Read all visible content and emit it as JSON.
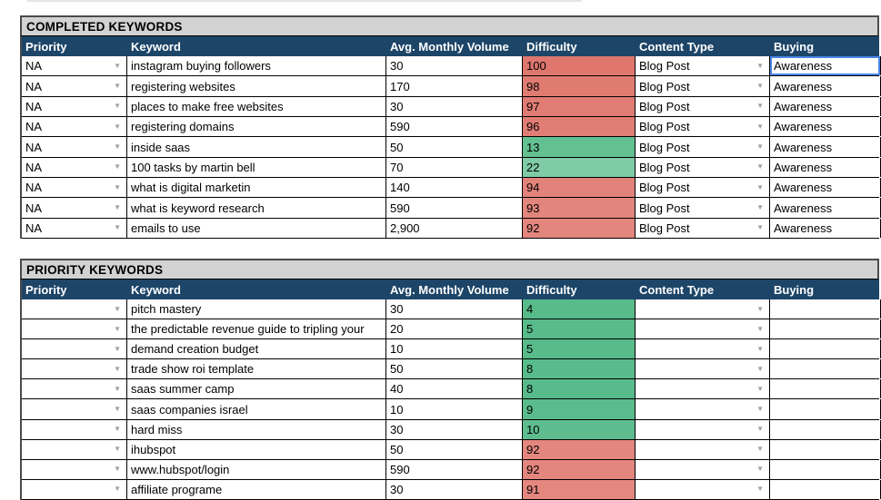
{
  "colors": {
    "header_bg": "#1d4568",
    "header_text": "#ffffff",
    "section_band_bg": "#d2d2d2",
    "difficulty_red": "#e3867e",
    "difficulty_green": "#57bb8a",
    "selection_border": "#4a86e8",
    "grid_border": "#000000"
  },
  "columns": [
    {
      "key": "priority",
      "label": "Priority"
    },
    {
      "key": "keyword",
      "label": "Keyword"
    },
    {
      "key": "volume",
      "label": "Avg. Monthly Volume"
    },
    {
      "key": "difficulty",
      "label": "Difficulty"
    },
    {
      "key": "content_type",
      "label": "Content Type"
    },
    {
      "key": "buying",
      "label": "Buying"
    }
  ],
  "tables": [
    {
      "title": "COMPLETED KEYWORDS",
      "rows": [
        {
          "priority": "NA",
          "keyword": "instagram buying followers",
          "volume": "30",
          "difficulty": "100",
          "difficulty_color": "#df776e",
          "content_type": "Blog Post",
          "buying": "Awareness",
          "buying_selected": true
        },
        {
          "priority": "NA",
          "keyword": "registering websites",
          "volume": "170",
          "difficulty": "98",
          "difficulty_color": "#e07b72",
          "content_type": "Blog Post",
          "buying": "Awareness",
          "buying_selected": false
        },
        {
          "priority": "NA",
          "keyword": "places to make free websites",
          "volume": "30",
          "difficulty": "97",
          "difficulty_color": "#e07c73",
          "content_type": "Blog Post",
          "buying": "Awareness",
          "buying_selected": false
        },
        {
          "priority": "NA",
          "keyword": "registering domains",
          "volume": "590",
          "difficulty": "96",
          "difficulty_color": "#e17d75",
          "content_type": "Blog Post",
          "buying": "Awareness",
          "buying_selected": false
        },
        {
          "priority": "NA",
          "keyword": "inside saas",
          "volume": "50",
          "difficulty": "13",
          "difficulty_color": "#63c091",
          "content_type": "Blog Post",
          "buying": "Awareness",
          "buying_selected": false
        },
        {
          "priority": "NA",
          "keyword": "100 tasks by martin bell",
          "volume": "70",
          "difficulty": "22",
          "difficulty_color": "#7fcba6",
          "content_type": "Blog Post",
          "buying": "Awareness",
          "buying_selected": false
        },
        {
          "priority": "NA",
          "keyword": "what is digital marketin",
          "volume": "140",
          "difficulty": "94",
          "difficulty_color": "#e2837b",
          "content_type": "Blog Post",
          "buying": "Awareness",
          "buying_selected": false
        },
        {
          "priority": "NA",
          "keyword": "what is keyword research",
          "volume": "590",
          "difficulty": "93",
          "difficulty_color": "#e2857c",
          "content_type": "Blog Post",
          "buying": "Awareness",
          "buying_selected": false
        },
        {
          "priority": "NA",
          "keyword": "emails to use",
          "volume": "2,900",
          "difficulty": "92",
          "difficulty_color": "#e3867e",
          "content_type": "Blog Post",
          "buying": "Awareness",
          "buying_selected": false
        }
      ]
    },
    {
      "title": "PRIORITY KEYWORDS",
      "rows": [
        {
          "priority": "",
          "keyword": "pitch mastery",
          "volume": "30",
          "difficulty": "4",
          "difficulty_color": "#57bb8a",
          "content_type": "",
          "buying": "",
          "buying_selected": false
        },
        {
          "priority": "",
          "keyword": "the predictable revenue guide to tripling your",
          "volume": "20",
          "difficulty": "5",
          "difficulty_color": "#57bb8a",
          "content_type": "",
          "buying": "",
          "buying_selected": false
        },
        {
          "priority": "",
          "keyword": "demand creation budget",
          "volume": "10",
          "difficulty": "5",
          "difficulty_color": "#57bb8a",
          "content_type": "",
          "buying": "",
          "buying_selected": false
        },
        {
          "priority": "",
          "keyword": "trade show roi template",
          "volume": "50",
          "difficulty": "8",
          "difficulty_color": "#58bb8b",
          "content_type": "",
          "buying": "",
          "buying_selected": false
        },
        {
          "priority": "",
          "keyword": "saas summer camp",
          "volume": "40",
          "difficulty": "8",
          "difficulty_color": "#58bb8b",
          "content_type": "",
          "buying": "",
          "buying_selected": false
        },
        {
          "priority": "",
          "keyword": "saas companies israel",
          "volume": "10",
          "difficulty": "9",
          "difficulty_color": "#5abc8c",
          "content_type": "",
          "buying": "",
          "buying_selected": false
        },
        {
          "priority": "",
          "keyword": "hard miss",
          "volume": "30",
          "difficulty": "10",
          "difficulty_color": "#5ebd8f",
          "content_type": "",
          "buying": "",
          "buying_selected": false
        },
        {
          "priority": "",
          "keyword": "ihubspot",
          "volume": "50",
          "difficulty": "92",
          "difficulty_color": "#e3867e",
          "content_type": "",
          "buying": "",
          "buying_selected": false
        },
        {
          "priority": "",
          "keyword": "www.hubspot/login",
          "volume": "590",
          "difficulty": "92",
          "difficulty_color": "#e3867e",
          "content_type": "",
          "buying": "",
          "buying_selected": false
        },
        {
          "priority": "",
          "keyword": "affiliate programe",
          "volume": "30",
          "difficulty": "91",
          "difficulty_color": "#e3877f",
          "content_type": "",
          "buying": "",
          "buying_selected": false
        }
      ]
    }
  ]
}
